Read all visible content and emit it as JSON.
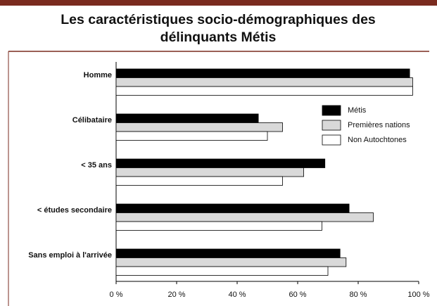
{
  "chart_data": {
    "type": "barh",
    "title": "Les caractéristiques socio-démographiques des délinquants Métis",
    "categories": [
      "Homme",
      "Célibataire",
      "< 35 ans",
      "< études secondaire",
      "Sans emploi à l'arrivée"
    ],
    "series": [
      {
        "name": "Métis",
        "color": "#000000",
        "values": [
          97,
          47,
          69,
          77,
          74
        ]
      },
      {
        "name": "Premières nations",
        "color": "#d9d9d9",
        "values": [
          98,
          55,
          62,
          85,
          76
        ]
      },
      {
        "name": "Non Autochtones",
        "color": "#ffffff",
        "values": [
          98,
          50,
          55,
          68,
          70
        ]
      }
    ],
    "xlim": [
      0,
      100
    ],
    "xticks": [
      {
        "value": 0,
        "label": "0 %"
      },
      {
        "value": 20,
        "label": "20 %"
      },
      {
        "value": 40,
        "label": "40 %"
      },
      {
        "value": 60,
        "label": "60 %"
      },
      {
        "value": 80,
        "label": "80 %"
      },
      {
        "value": 100,
        "label": "100 %"
      }
    ],
    "legend": "upper right"
  }
}
